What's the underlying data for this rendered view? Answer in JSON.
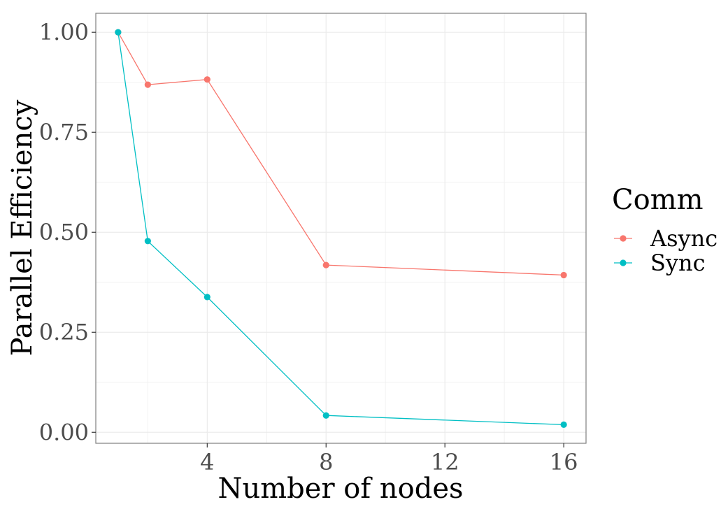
{
  "chart_data": {
    "type": "line",
    "xlabel": "Number of nodes",
    "ylabel": "Parallel Efficiency",
    "xlim": [
      0.25,
      16.75
    ],
    "ylim": [
      -0.0275,
      1.0475
    ],
    "x_ticks": [
      4,
      8,
      12,
      16
    ],
    "x_tick_labels": [
      "4",
      "8",
      "12",
      "16"
    ],
    "y_ticks": [
      0,
      0.25,
      0.5,
      0.75,
      1.0
    ],
    "y_tick_labels": [
      "0.00",
      "0.25",
      "0.50",
      "0.75",
      "1.00"
    ],
    "grid": true,
    "legend": {
      "title": "Comm",
      "placement": "right"
    },
    "series": [
      {
        "name": "Async",
        "color": "#F8766D",
        "x": [
          1,
          2,
          4,
          8,
          16
        ],
        "y": [
          1.0,
          0.869,
          0.882,
          0.418,
          0.393
        ]
      },
      {
        "name": "Sync",
        "color": "#00BFC4",
        "x": [
          1,
          2,
          4,
          8,
          16
        ],
        "y": [
          1.0,
          0.478,
          0.338,
          0.042,
          0.019
        ]
      }
    ]
  }
}
